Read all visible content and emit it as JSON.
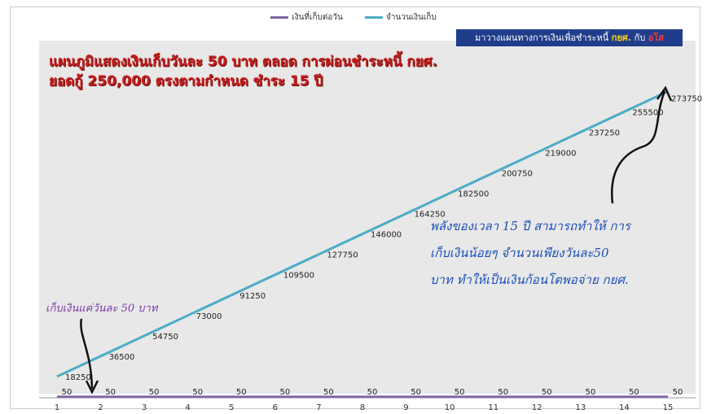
{
  "legend": {
    "daily_label": "เงินที่เก็บต่อวัน",
    "total_label": "จำนวนเงินเก็บ"
  },
  "banner": {
    "prefix": "มาวางแผนทางการเงินเพื่อชำระหนี้",
    "word1": "กยศ.",
    "middle": "กับ",
    "word2": "อโส"
  },
  "title": {
    "line1": "แผนภูมิแสดงเงินเก็บวันละ 50 บาท ตลอด การผ่อนชำระหนี้ กยศ.",
    "line2": "ยอดกู้ 250,000 ตรงตามกำหนด ชำระ 15 ปี"
  },
  "annotations": {
    "purple_note": "เก็บเงินแค่วันละ 50 บาท",
    "blue_note": [
      "พลังของเวลา 15 ปี สามารถทำให้ การ",
      "เก็บเงินน้อยๆ จำนวนเพียงวันละ50",
      "บาท ทำให้เป็นเงินก้อนโตพอจ่าย กยศ."
    ]
  },
  "colors": {
    "total_line": "#4bacc6",
    "daily_line": "#8064a2",
    "banner_bg": "#1f3d8a",
    "title_red": "#c0201e",
    "note_blue": "#1b4fb5",
    "note_purple": "#7a3aa5"
  },
  "chart_data": {
    "type": "line",
    "x": [
      1,
      2,
      3,
      4,
      5,
      6,
      7,
      8,
      9,
      10,
      11,
      12,
      13,
      14,
      15
    ],
    "series": [
      {
        "name": "เงินที่เก็บต่อวัน",
        "values": [
          50,
          50,
          50,
          50,
          50,
          50,
          50,
          50,
          50,
          50,
          50,
          50,
          50,
          50,
          50
        ]
      },
      {
        "name": "จำนวนเงินเก็บ",
        "values": [
          18250,
          36500,
          54750,
          73000,
          91250,
          109500,
          127750,
          146000,
          164250,
          182500,
          200750,
          219000,
          237250,
          255500,
          273750
        ]
      }
    ],
    "x_tick_labels": [
      "1",
      "2",
      "3",
      "4",
      "5",
      "6",
      "7",
      "8",
      "9",
      "10",
      "11",
      "12",
      "13",
      "14",
      "15"
    ],
    "ylim": [
      0,
      290000
    ],
    "data_labels": true,
    "legend_position": "top",
    "grid": false
  }
}
